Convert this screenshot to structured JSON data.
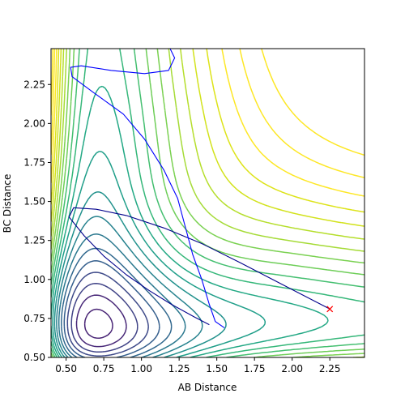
{
  "chart_data": {
    "type": "line",
    "title": "",
    "xlabel": "AB Distance",
    "ylabel": "BC Distance",
    "xlim": [
      0.4,
      2.48
    ],
    "ylim": [
      0.5,
      2.48
    ],
    "xticks": [
      0.5,
      0.75,
      1.0,
      1.25,
      1.5,
      1.75,
      2.0,
      2.25
    ],
    "xtick_labels": [
      "0.50",
      "0.75",
      "1.00",
      "1.25",
      "1.50",
      "1.75",
      "2.00",
      "2.25"
    ],
    "yticks": [
      0.5,
      0.75,
      1.0,
      1.25,
      1.5,
      1.75,
      2.0,
      2.25
    ],
    "ytick_labels": [
      "0.50",
      "0.75",
      "1.00",
      "1.25",
      "1.50",
      "1.75",
      "2.00",
      "2.25"
    ],
    "grid": false,
    "contour_colormap": "viridis",
    "contour_levels": 24,
    "contour_colors": [
      "#440154",
      "#440154",
      "#482475",
      "#482878",
      "#414487",
      "#3e4a89",
      "#355f8d",
      "#31688e",
      "#2a788e",
      "#26828e",
      "#21918c",
      "#1f9e89",
      "#22a884",
      "#35b779",
      "#44bf70",
      "#6ece58",
      "#7ad151",
      "#a5db36",
      "#b5de2b",
      "#d2e21b",
      "#dde318",
      "#fde725",
      "#fde725",
      "#fde725"
    ],
    "series": [
      {
        "color": "#00008b",
        "points": [
          [
            2.25,
            0.81
          ],
          [
            1.95,
            0.96
          ],
          [
            1.65,
            1.11
          ],
          [
            1.4,
            1.23
          ],
          [
            1.15,
            1.33
          ],
          [
            0.9,
            1.41
          ],
          [
            0.7,
            1.45
          ],
          [
            0.55,
            1.46
          ],
          [
            0.52,
            1.4
          ],
          [
            0.62,
            1.28
          ],
          [
            0.75,
            1.15
          ],
          [
            0.9,
            1.03
          ],
          [
            1.05,
            0.93
          ],
          [
            1.2,
            0.84
          ],
          [
            1.35,
            0.76
          ],
          [
            1.45,
            0.71
          ]
        ]
      },
      {
        "color": "#0000ff",
        "points": [
          [
            1.55,
            0.69
          ],
          [
            1.49,
            0.73
          ],
          [
            1.45,
            0.84
          ],
          [
            1.4,
            1.0
          ],
          [
            1.34,
            1.16
          ],
          [
            1.29,
            1.34
          ],
          [
            1.24,
            1.52
          ],
          [
            1.15,
            1.7
          ],
          [
            1.02,
            1.9
          ],
          [
            0.88,
            2.06
          ],
          [
            0.68,
            2.2
          ],
          [
            0.54,
            2.3
          ],
          [
            0.53,
            2.36
          ],
          [
            0.6,
            2.37
          ],
          [
            0.8,
            2.34
          ],
          [
            1.02,
            2.32
          ],
          [
            1.18,
            2.34
          ],
          [
            1.22,
            2.42
          ],
          [
            1.19,
            2.48
          ]
        ]
      }
    ],
    "marker": {
      "x": 2.25,
      "y": 0.81,
      "symbol": "x",
      "color": "#ff0000"
    }
  }
}
